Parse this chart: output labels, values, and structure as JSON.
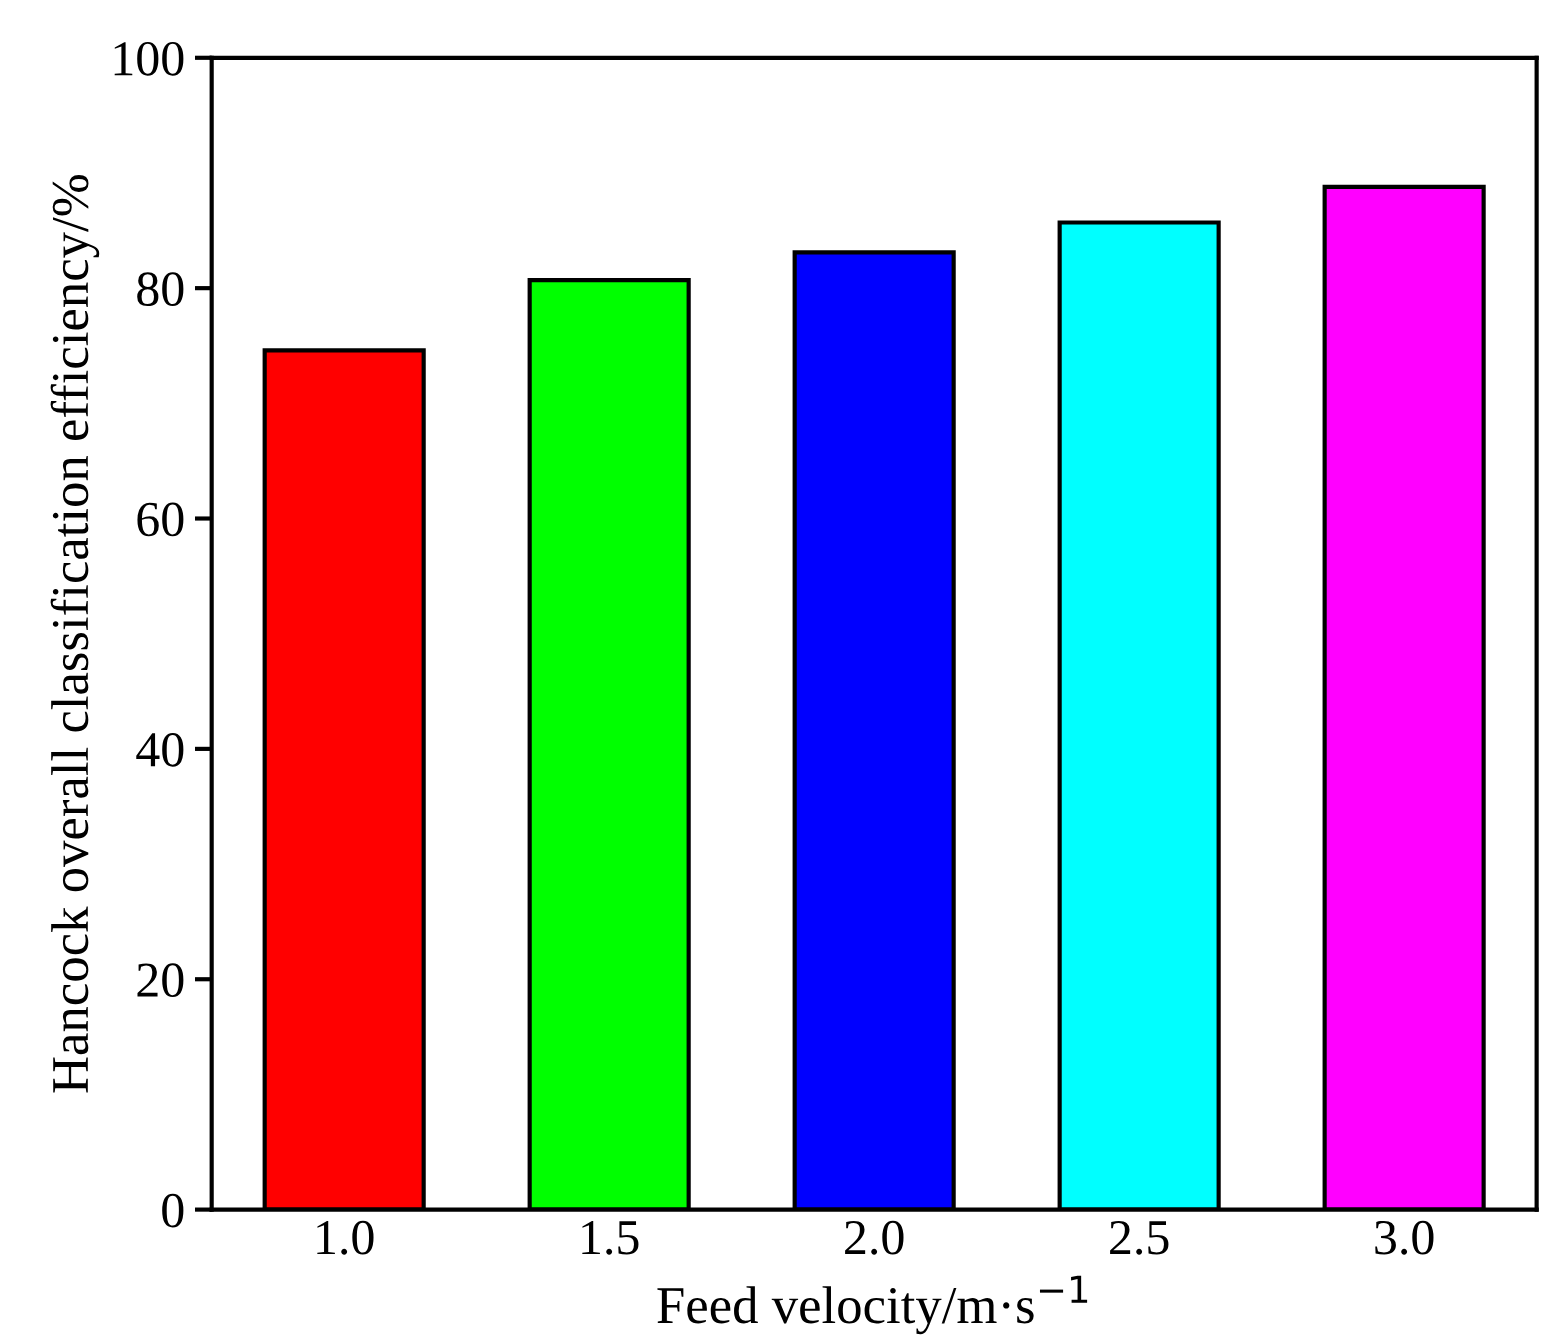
{
  "chart_data": {
    "type": "bar",
    "xlabel": "Feed velocity/m·s$^{−1}$",
    "ylabel": "Hancock overall classification efficiency/%",
    "categories": [
      "1.0",
      "1.5",
      "2.0",
      "2.5",
      "3.0"
    ],
    "values": [
      74.6,
      80.7,
      83.1,
      85.7,
      88.8
    ],
    "colors": [
      "#ff0000",
      "#00ff00",
      "#0000ff",
      "#00ffff",
      "#ff00ff"
    ],
    "ylim": [
      0,
      100
    ],
    "yticks": [
      0,
      20,
      40,
      60,
      80,
      100
    ],
    "grid": false,
    "legend": false
  }
}
